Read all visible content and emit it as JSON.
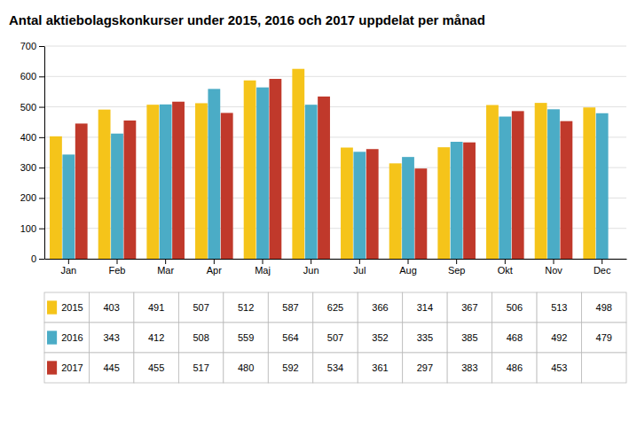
{
  "chart_data": {
    "type": "bar",
    "title": "Antal aktiebolagskonkurser under 2015, 2016 och 2017 uppdelat per månad",
    "categories": [
      "Jan",
      "Feb",
      "Mar",
      "Apr",
      "Maj",
      "Jun",
      "Jul",
      "Aug",
      "Sep",
      "Okt",
      "Nov",
      "Dec"
    ],
    "series": [
      {
        "name": "2015",
        "color": "#F5C41A",
        "values": [
          403,
          491,
          507,
          512,
          587,
          625,
          366,
          314,
          367,
          506,
          513,
          498
        ]
      },
      {
        "name": "2016",
        "color": "#4BACC6",
        "values": [
          343,
          412,
          508,
          559,
          564,
          507,
          352,
          335,
          385,
          468,
          492,
          479
        ]
      },
      {
        "name": "2017",
        "color": "#C0392B",
        "values": [
          445,
          455,
          517,
          480,
          592,
          534,
          361,
          297,
          383,
          486,
          453,
          null
        ]
      }
    ],
    "ylim": [
      0,
      700
    ],
    "yticks": [
      0,
      100,
      200,
      300,
      400,
      500,
      600,
      700
    ],
    "grid": true
  }
}
